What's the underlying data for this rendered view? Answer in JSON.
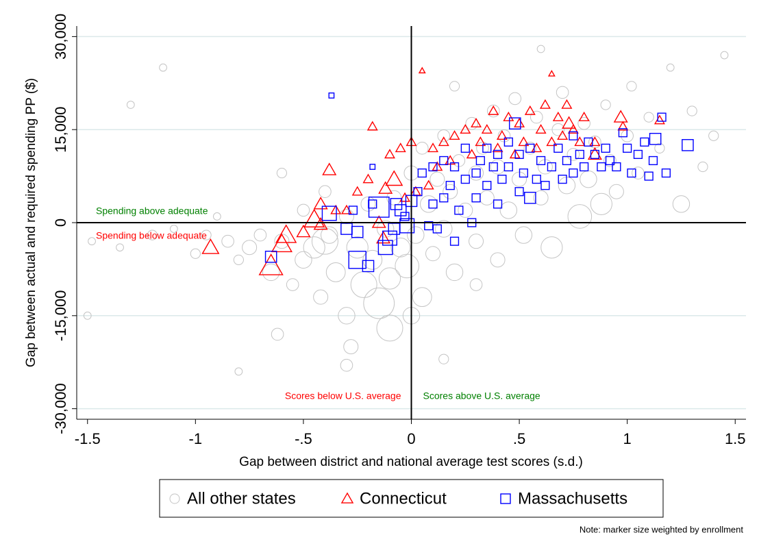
{
  "chart_data": {
    "type": "scatter",
    "xlabel": "Gap between district and national average test scores (s.d.)",
    "ylabel": "Gap between actual and required spending PP ($)",
    "xlim": [
      -1.55,
      1.55
    ],
    "ylim": [
      -31700,
      31700
    ],
    "xticks": [
      -1.5,
      -1,
      {
        "value": -0.5,
        "label": "-.5"
      },
      0,
      {
        "value": 0.5,
        "label": ".5"
      },
      1,
      1.5
    ],
    "yticks": [
      {
        "value": -30000,
        "label": "-30,000"
      },
      {
        "value": -15000,
        "label": "-15,000"
      },
      0,
      {
        "value": 15000,
        "label": "15,000"
      },
      {
        "value": 30000,
        "label": "30,000"
      }
    ],
    "grid": true,
    "reference_lines": {
      "x": 0,
      "y": 0
    },
    "annotations": [
      "Spending above adequate",
      "Spending below adequate",
      "Scores below U.S. average",
      "Scores above U.S. average"
    ],
    "note": "Note: marker size weighted by enrollment",
    "series": [
      {
        "name": "All other states",
        "color": "#c4c4c4",
        "marker": "circle",
        "x": [
          -1.48,
          -1.35,
          -1.2,
          -1.1,
          -1.0,
          -0.95,
          -0.9,
          -0.85,
          -0.8,
          -0.75,
          -0.7,
          -0.65,
          -0.62,
          -0.6,
          -0.55,
          -0.5,
          -0.5,
          -0.45,
          -0.42,
          -0.4,
          -0.38,
          -0.35,
          -0.3,
          -0.3,
          -0.28,
          -0.25,
          -0.22,
          -0.2,
          -0.18,
          -0.15,
          -0.12,
          -0.1,
          -0.08,
          -0.05,
          -0.02,
          0,
          0.02,
          0.05,
          0.05,
          0.08,
          0.1,
          0.12,
          0.15,
          0.15,
          0.18,
          0.2,
          0.22,
          0.25,
          0.28,
          0.3,
          0.3,
          0.33,
          0.35,
          0.38,
          0.4,
          0.4,
          0.43,
          0.45,
          0.48,
          0.5,
          0.52,
          0.55,
          0.58,
          0.6,
          0.62,
          0.65,
          0.68,
          0.7,
          0.72,
          0.75,
          0.78,
          0.8,
          0.82,
          0.85,
          0.88,
          0.9,
          0.92,
          0.95,
          1.0,
          1.02,
          1.05,
          1.1,
          1.15,
          1.2,
          1.25,
          1.3,
          1.35,
          1.4,
          1.45,
          -1.3,
          -1.15,
          -0.8,
          -0.3,
          0.15,
          -0.1,
          0.0,
          -0.4,
          0.3,
          -0.6,
          0.6,
          0.2,
          -1.5
        ],
        "y": [
          -3000,
          -4000,
          -2000,
          -1000,
          -5000,
          -2000,
          1000,
          -3000,
          -6000,
          -4000,
          -2000,
          -8000,
          -18000,
          -3000,
          -10000,
          2000,
          -6000,
          -4000,
          -12000,
          5000,
          -2000,
          -8000,
          1000,
          -15000,
          -20000,
          -4000,
          -10000,
          3000,
          -6000,
          -13000,
          -1000,
          -9000,
          4000,
          -4000,
          -7000,
          8000,
          -2000,
          -12000,
          12000,
          3000,
          -5000,
          7000,
          -1000,
          14000,
          5000,
          -8000,
          10000,
          2000,
          16000,
          -3000,
          8000,
          12000,
          4000,
          18000,
          -6000,
          9000,
          14000,
          2000,
          20000,
          7000,
          -2000,
          12000,
          17000,
          4000,
          9000,
          -4000,
          15000,
          21000,
          6000,
          11000,
          1000,
          16000,
          7000,
          13000,
          3000,
          19000,
          10000,
          5000,
          14000,
          22000,
          8000,
          17000,
          12000,
          25000,
          3000,
          18000,
          9000,
          14000,
          27000,
          19000,
          25000,
          -24000,
          -23000,
          -22000,
          -17000,
          -15000,
          -3000,
          -10000,
          8000,
          28000,
          22000,
          -15000
        ],
        "sizes": [
          2,
          2,
          3,
          2,
          3,
          3,
          2,
          4,
          3,
          5,
          4,
          6,
          4,
          5,
          4,
          4,
          6,
          8,
          5,
          4,
          6,
          7,
          5,
          6,
          5,
          8,
          10,
          5,
          7,
          12,
          6,
          8,
          5,
          7,
          9,
          5,
          6,
          7,
          4,
          6,
          5,
          5,
          6,
          4,
          5,
          6,
          4,
          5,
          4,
          5,
          5,
          4,
          5,
          4,
          5,
          5,
          4,
          6,
          4,
          5,
          6,
          4,
          4,
          5,
          5,
          8,
          4,
          4,
          6,
          4,
          9,
          4,
          6,
          4,
          8,
          3,
          4,
          5,
          4,
          3,
          4,
          3,
          3,
          2,
          6,
          3,
          3,
          3,
          2,
          2,
          2,
          2,
          4,
          3,
          10,
          6,
          10,
          4,
          3,
          2,
          3,
          2
        ]
      },
      {
        "name": "Connecticut",
        "color": "#ff0000",
        "marker": "triangle",
        "x": [
          -0.93,
          -0.65,
          -0.6,
          -0.58,
          -0.45,
          -0.5,
          -0.42,
          -0.42,
          -0.38,
          -0.3,
          -0.25,
          -0.2,
          -0.18,
          -0.15,
          -0.13,
          -0.12,
          -0.1,
          -0.08,
          -0.05,
          -0.03,
          0,
          0.02,
          0.05,
          0.1,
          0.12,
          0.15,
          0.18,
          0.2,
          0.25,
          0.28,
          0.3,
          0.32,
          0.35,
          0.38,
          0.4,
          0.42,
          0.45,
          0.48,
          0.5,
          0.52,
          0.55,
          0.58,
          0.6,
          0.62,
          0.65,
          0.65,
          0.68,
          0.7,
          0.72,
          0.73,
          0.75,
          0.78,
          0.8,
          0.85,
          0.85,
          0.97,
          0.98,
          1.15,
          -0.35,
          0.08
        ],
        "y": [
          -4000,
          -7000,
          -3500,
          -2000,
          500,
          -1500,
          3000,
          -300,
          8500,
          2000,
          5000,
          7000,
          15500,
          0,
          -2500,
          5500,
          11000,
          7000,
          12000,
          4000,
          13000,
          5000,
          24500,
          12000,
          9000,
          13000,
          10000,
          14000,
          15000,
          11000,
          16000,
          13000,
          15000,
          18000,
          12000,
          14000,
          17000,
          11000,
          16000,
          13000,
          18000,
          12000,
          15000,
          19000,
          24000,
          13000,
          17000,
          14000,
          19000,
          16000,
          15000,
          13000,
          17000,
          11000,
          13000,
          17000,
          15500,
          16500,
          2000,
          6000
        ],
        "sizes": [
          4,
          6,
          5,
          5,
          5,
          3,
          3,
          3,
          3,
          2,
          2,
          2,
          2,
          3,
          3,
          3,
          2,
          4,
          2,
          2,
          2,
          2,
          1,
          2,
          2,
          2,
          2,
          2,
          2,
          2,
          2,
          2,
          2,
          2,
          2,
          2,
          2,
          2,
          2,
          2,
          2,
          2,
          2,
          2,
          1,
          2,
          2,
          2,
          2,
          3,
          2,
          2,
          2,
          3,
          2,
          3,
          2,
          2,
          2,
          2
        ]
      },
      {
        "name": "Massachusetts",
        "color": "#0000ff",
        "marker": "square",
        "x": [
          -0.65,
          -0.38,
          -0.37,
          -0.3,
          -0.27,
          -0.25,
          -0.25,
          -0.2,
          -0.18,
          -0.18,
          -0.15,
          -0.12,
          -0.1,
          -0.08,
          -0.07,
          -0.05,
          -0.03,
          -0.02,
          0,
          0.03,
          0.05,
          0.08,
          0.1,
          0.1,
          0.12,
          0.15,
          0.15,
          0.18,
          0.2,
          0.2,
          0.22,
          0.25,
          0.25,
          0.28,
          0.3,
          0.3,
          0.32,
          0.35,
          0.35,
          0.38,
          0.4,
          0.4,
          0.42,
          0.45,
          0.45,
          0.48,
          0.5,
          0.5,
          0.52,
          0.55,
          0.55,
          0.58,
          0.6,
          0.62,
          0.65,
          0.68,
          0.7,
          0.72,
          0.75,
          0.75,
          0.78,
          0.8,
          0.82,
          0.85,
          0.88,
          0.9,
          0.92,
          0.95,
          0.98,
          1.0,
          1.02,
          1.05,
          1.08,
          1.1,
          1.13,
          1.16,
          1.18,
          1.28,
          1.12
        ],
        "y": [
          -5500,
          1500,
          20500,
          -1000,
          2000,
          -1500,
          -6000,
          -7000,
          3000,
          9000,
          2500,
          -4000,
          -2500,
          -1000,
          3000,
          2000,
          1000,
          -500,
          3500,
          5000,
          8000,
          -500,
          3000,
          9000,
          -1000,
          4000,
          10000,
          6000,
          -3000,
          9000,
          2000,
          7000,
          12000,
          0,
          8000,
          4000,
          10000,
          6000,
          12000,
          9000,
          3000,
          11000,
          7000,
          9000,
          13000,
          16000,
          5000,
          11000,
          8000,
          4000,
          12000,
          7000,
          10000,
          6000,
          9000,
          12000,
          7000,
          10000,
          14000,
          8000,
          11000,
          9000,
          13000,
          11000,
          9000,
          12000,
          10000,
          9000,
          14500,
          12000,
          8000,
          11000,
          13000,
          7500,
          13500,
          17000,
          8000,
          12500,
          10000
        ],
        "sizes": [
          3,
          4,
          1,
          3,
          2,
          3,
          5,
          3,
          2,
          1,
          6,
          4,
          4,
          3,
          3,
          3,
          2,
          4,
          3,
          2,
          2,
          2,
          2,
          2,
          2,
          2,
          2,
          2,
          2,
          2,
          2,
          2,
          2,
          2,
          2,
          2,
          2,
          2,
          2,
          2,
          2,
          2,
          2,
          2,
          2,
          3,
          2,
          2,
          2,
          3,
          2,
          2,
          2,
          2,
          2,
          2,
          2,
          2,
          2,
          2,
          2,
          2,
          2,
          2,
          2,
          2,
          2,
          2,
          2,
          2,
          2,
          2,
          2,
          2,
          3,
          2,
          2,
          3,
          2
        ]
      }
    ]
  }
}
